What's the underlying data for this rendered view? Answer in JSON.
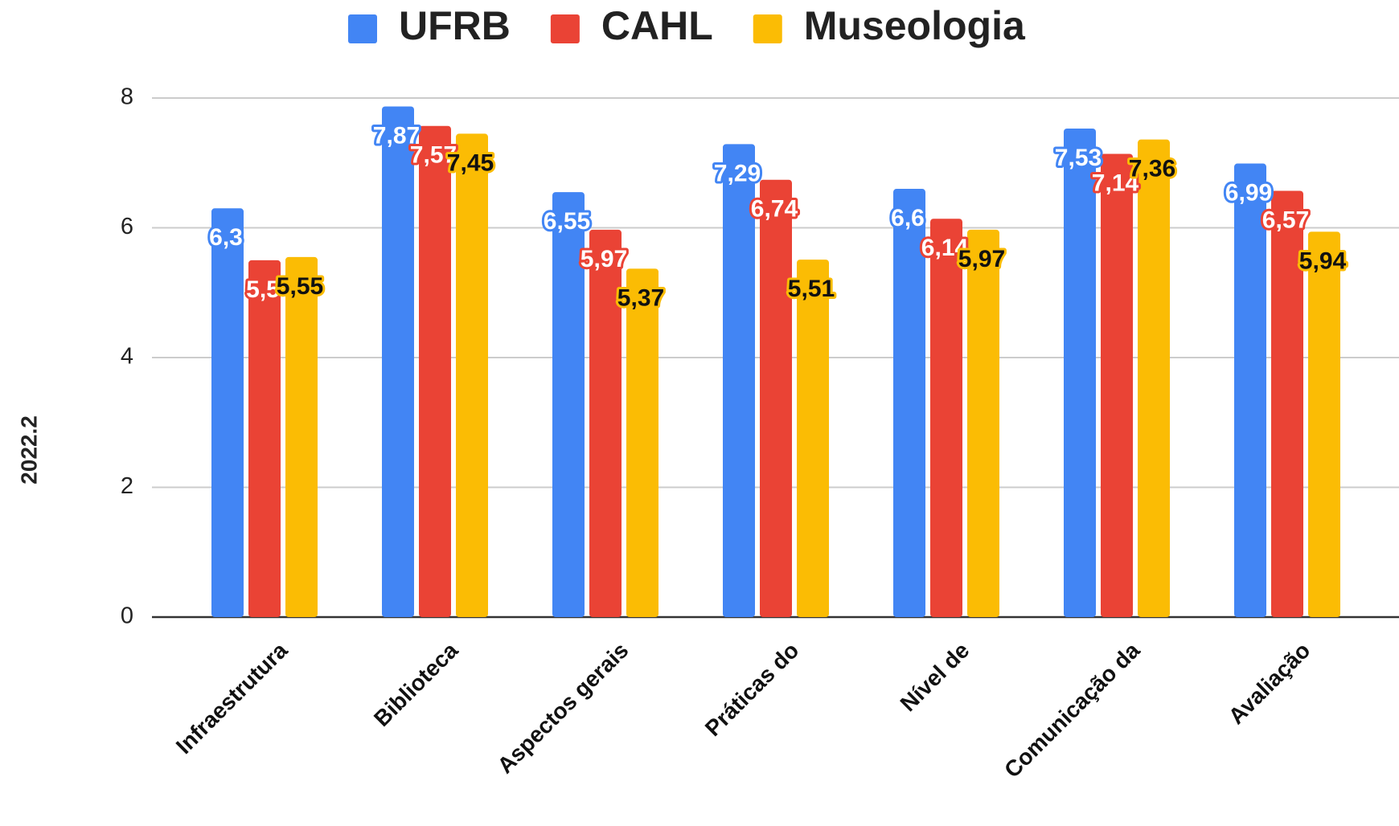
{
  "chart_data": {
    "type": "bar",
    "y_label": "2022.2",
    "categories": [
      "Infraestrutura",
      "Biblioteca",
      "Aspectos gerais",
      "Práticas do",
      "Nível de",
      "Comunicação da",
      "Avaliação"
    ],
    "series": [
      {
        "name": "UFRB",
        "color": "#4285f4",
        "values": [
          6.3,
          7.87,
          6.55,
          7.29,
          6.6,
          7.53,
          6.99
        ],
        "value_labels": [
          "6,3",
          "7,87",
          "6,55",
          "7,29",
          "6,6",
          "7,53",
          "6,99"
        ]
      },
      {
        "name": "CAHL",
        "color": "#ea4335",
        "values": [
          5.5,
          7.57,
          5.97,
          6.74,
          6.14,
          7.14,
          6.57
        ],
        "value_labels": [
          "5,5",
          "7,57",
          "5,97",
          "6,74",
          "6,14",
          "7,14",
          "6,57"
        ]
      },
      {
        "name": "Museologia",
        "color": "#fbbc04",
        "values": [
          5.55,
          7.45,
          5.37,
          5.51,
          5.97,
          7.36,
          5.94
        ],
        "value_labels": [
          "5,55",
          "7,45",
          "5,37",
          "5,51",
          "5,97",
          "7,36",
          "5,94"
        ]
      }
    ],
    "ylim": [
      0,
      8
    ],
    "yticks": [
      0,
      2,
      4,
      6,
      8
    ],
    "grid": true,
    "legend": "top"
  }
}
